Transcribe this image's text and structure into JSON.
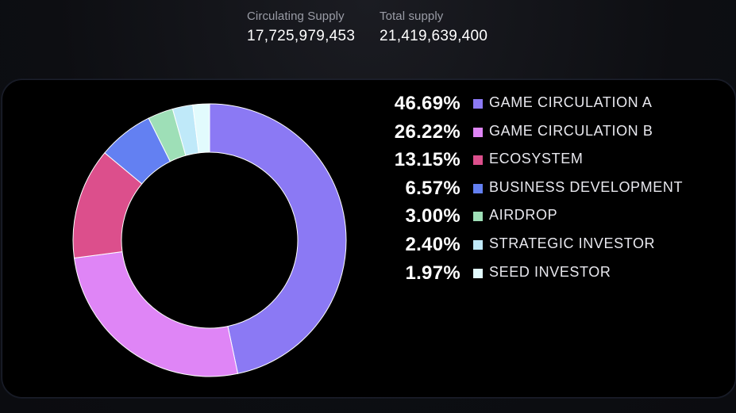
{
  "supply": {
    "circulating_label": "Circulating Supply",
    "circulating_value": "17,725,979,453",
    "total_label": "Total supply",
    "total_value": "21,419,639,400"
  },
  "chart_data": {
    "type": "pie",
    "variant": "donut",
    "legend_position": "right",
    "slices": [
      {
        "label": "GAME CIRCULATION A",
        "value": 46.69,
        "value_label": "46.69%",
        "color": "#8b79f4"
      },
      {
        "label": "GAME CIRCULATION B",
        "value": 26.22,
        "value_label": "26.22%",
        "color": "#df85f6"
      },
      {
        "label": "ECOSYSTEM",
        "value": 13.15,
        "value_label": "13.15%",
        "color": "#dc4f8c"
      },
      {
        "label": "BUSINESS DEVELOPMENT",
        "value": 6.57,
        "value_label": "6.57%",
        "color": "#6380f2"
      },
      {
        "label": "AIRDROP",
        "value": 3.0,
        "value_label": "3.00%",
        "color": "#9edfb7"
      },
      {
        "label": "STRATEGIC INVESTOR",
        "value": 2.4,
        "value_label": "2.40%",
        "color": "#bfe9f9"
      },
      {
        "label": "SEED INVESTOR",
        "value": 1.97,
        "value_label": "1.97%",
        "color": "#e2fbfd"
      }
    ]
  }
}
